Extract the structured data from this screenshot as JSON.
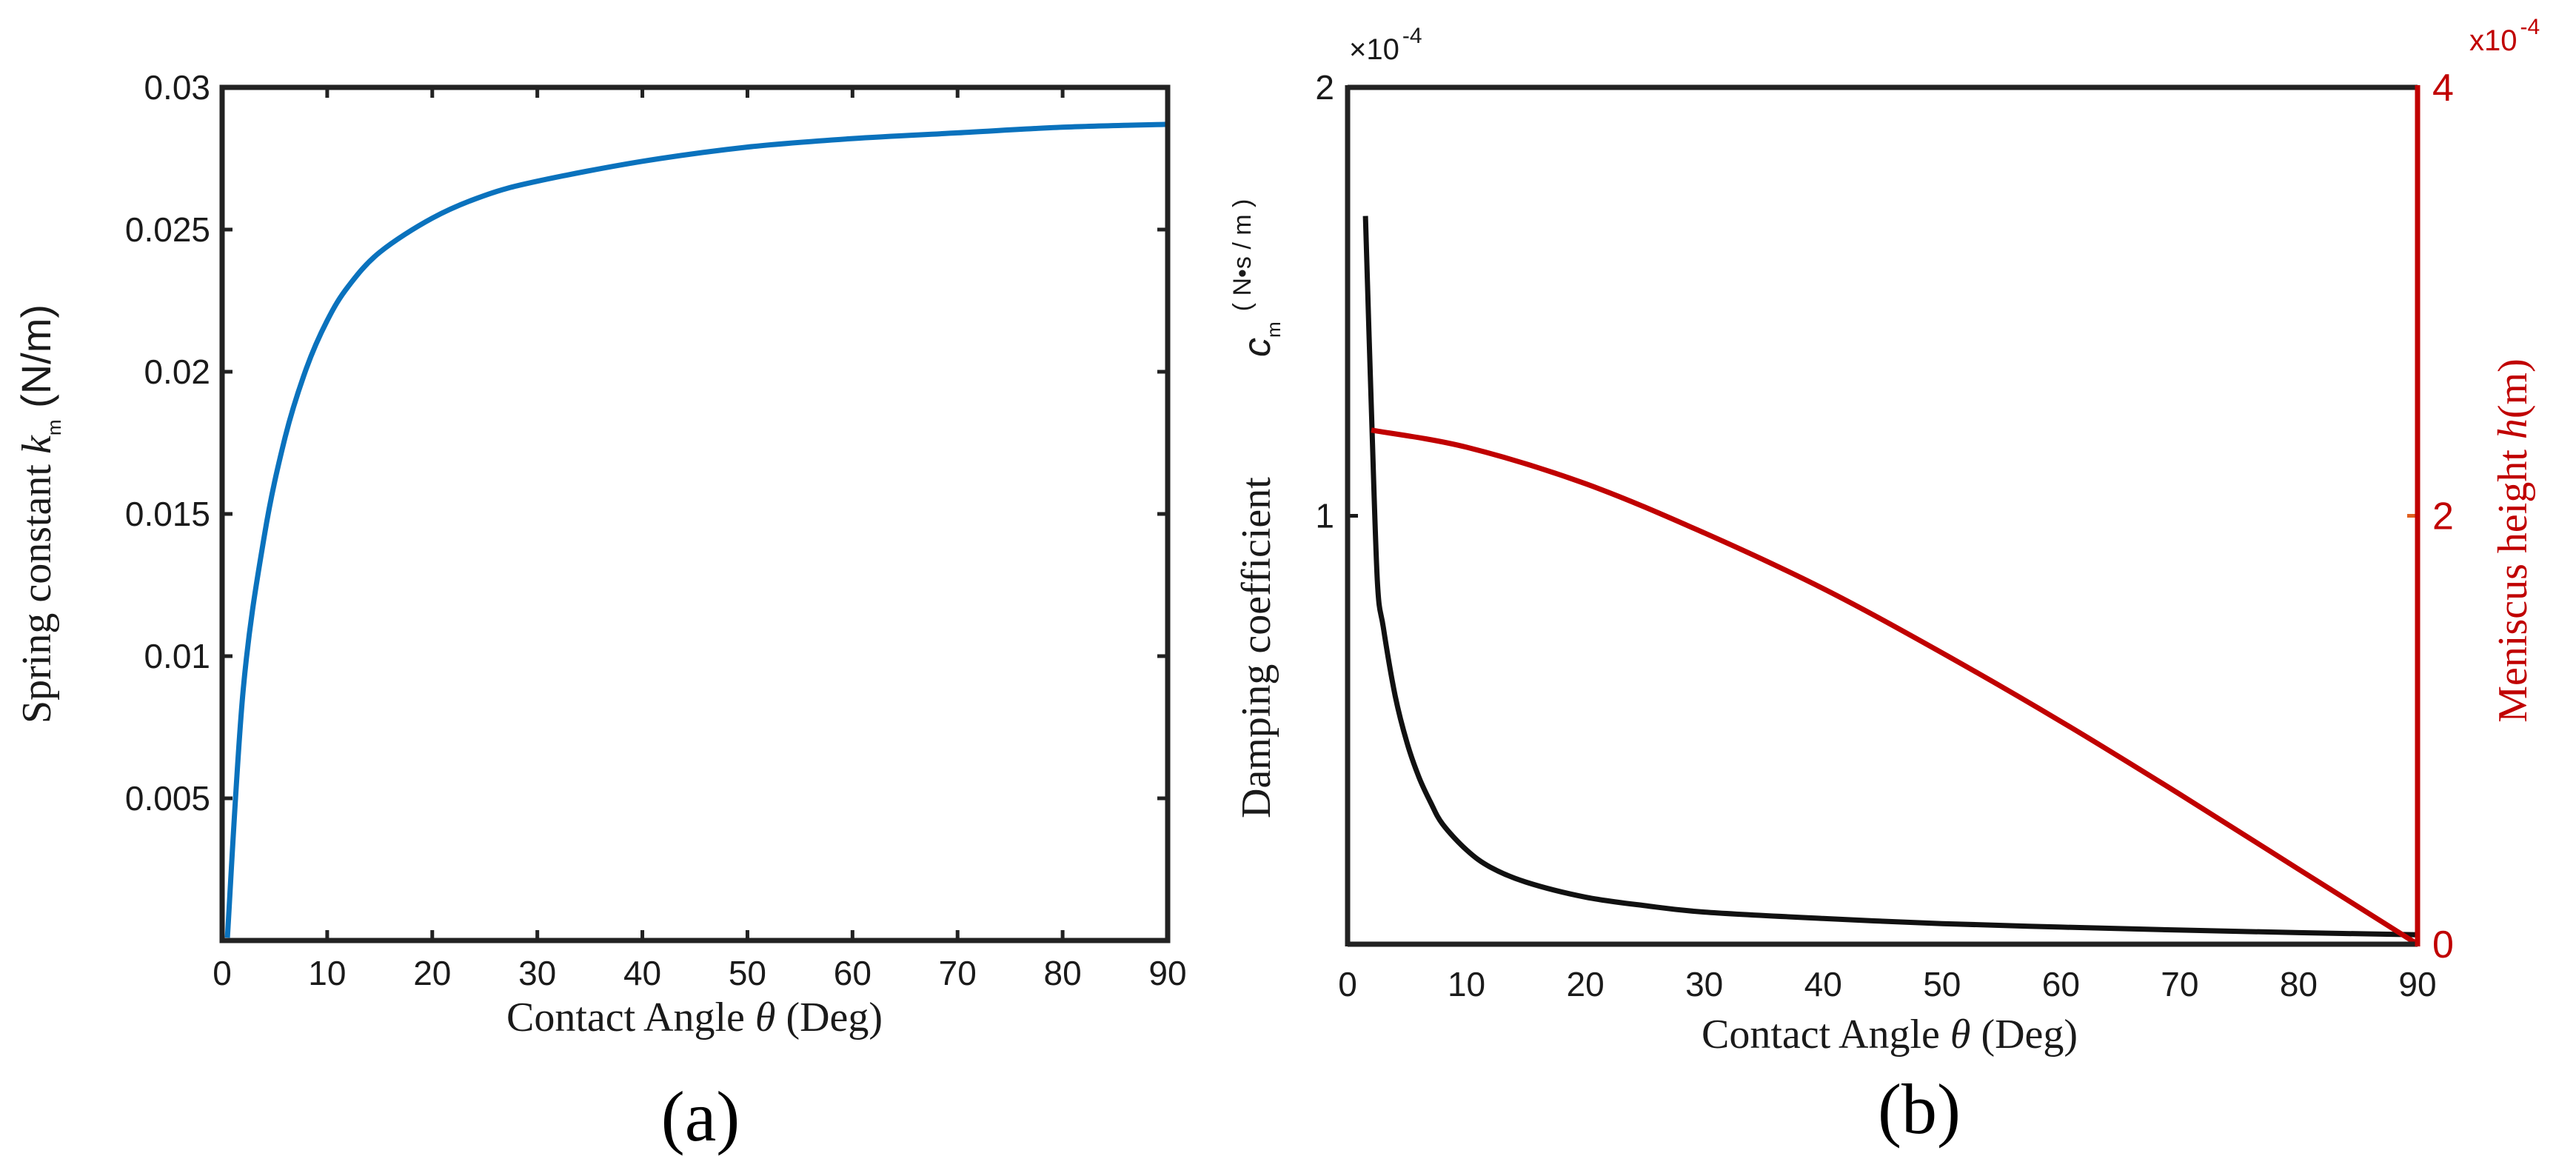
{
  "chart_data": [
    {
      "panel": "(a)",
      "type": "line",
      "xlabel_main": "Contact Angle ",
      "xlabel_symbol": "θ",
      "xlabel_unit": " (Deg)",
      "ylabel_main": "Spring constant ",
      "ylabel_symbol": "k",
      "ylabel_sub": "m",
      "ylabel_unit": " (N/m)",
      "xlim": [
        0,
        90
      ],
      "ylim": [
        0,
        0.03
      ],
      "xticks": [
        0,
        10,
        20,
        30,
        40,
        50,
        60,
        70,
        80,
        90
      ],
      "xtick_labels": [
        "0",
        "10",
        "20",
        "30",
        "40",
        "50",
        "60",
        "70",
        "80",
        "90"
      ],
      "yticks": [
        0.005,
        0.01,
        0.015,
        0.02,
        0.025,
        0.03
      ],
      "ytick_labels": [
        "0.005",
        "0.01",
        "0.015",
        "0.02",
        "0.025",
        "0.03"
      ],
      "grid": false,
      "series": [
        {
          "name": "Spring constant k_m",
          "color": "#0a72bd",
          "x": [
            0.5,
            2,
            4,
            6,
            8,
            10,
            12,
            15,
            20,
            25,
            30,
            40,
            50,
            60,
            70,
            80,
            90
          ],
          "y": [
            0.0001,
            0.0088,
            0.0142,
            0.0177,
            0.0201,
            0.0218,
            0.023,
            0.0242,
            0.0254,
            0.0262,
            0.0267,
            0.0274,
            0.0279,
            0.0282,
            0.0284,
            0.0286,
            0.0287
          ]
        }
      ]
    },
    {
      "panel": "(b)",
      "type": "line",
      "xlabel_main": "Contact Angle ",
      "xlabel_symbol": "θ",
      "xlabel_unit": " (Deg)",
      "left_ylabel_main": "Damping coefficient",
      "left_ylabel_symbol": "c",
      "left_ylabel_sub": "m",
      "left_ylabel_unit": "( N•s / m )",
      "left_multiplier_base": "×10",
      "left_multiplier_exp": "-4",
      "right_ylabel_main": "Meniscus height ",
      "right_ylabel_symbol": "h",
      "right_ylabel_unit": "(m)",
      "right_multiplier_base": "x10",
      "right_multiplier_exp": "-4",
      "xlim": [
        0,
        90
      ],
      "ylim_left": [
        0,
        2
      ],
      "ylim_right": [
        0,
        4
      ],
      "xticks": [
        0,
        10,
        20,
        30,
        40,
        50,
        60,
        70,
        80,
        90
      ],
      "xtick_labels": [
        "0",
        "10",
        "20",
        "30",
        "40",
        "50",
        "60",
        "70",
        "80",
        "90"
      ],
      "yticks_left": [
        1,
        2
      ],
      "ytick_labels_left": [
        "1",
        "2"
      ],
      "yticks_right": [
        0,
        2,
        4
      ],
      "ytick_labels_right": [
        "0",
        "2",
        "4"
      ],
      "grid": false,
      "left_axis_color": "#1a1a1a",
      "right_axis_color": "#c00000",
      "series": [
        {
          "name": "Damping coefficient c_m",
          "axis": "left",
          "color": "#111111",
          "x": [
            1.5,
            2,
            2.5,
            3,
            4,
            5,
            6,
            7,
            8,
            10,
            12,
            15,
            20,
            25,
            30,
            40,
            50,
            60,
            70,
            80,
            90
          ],
          "y": [
            1.7,
            1.25,
            0.85,
            0.74,
            0.58,
            0.47,
            0.39,
            0.33,
            0.28,
            0.22,
            0.18,
            0.145,
            0.11,
            0.09,
            0.075,
            0.06,
            0.048,
            0.04,
            0.033,
            0.027,
            0.022
          ]
        },
        {
          "name": "Meniscus height h",
          "axis": "right",
          "color": "#c00000",
          "x": [
            2,
            10,
            20,
            30,
            40,
            50,
            60,
            70,
            80,
            90
          ],
          "y": [
            2.4,
            2.32,
            2.15,
            1.92,
            1.66,
            1.36,
            1.04,
            0.7,
            0.35,
            0.0
          ]
        }
      ]
    }
  ],
  "captions": {
    "a": "(a)",
    "b": "(b)"
  }
}
